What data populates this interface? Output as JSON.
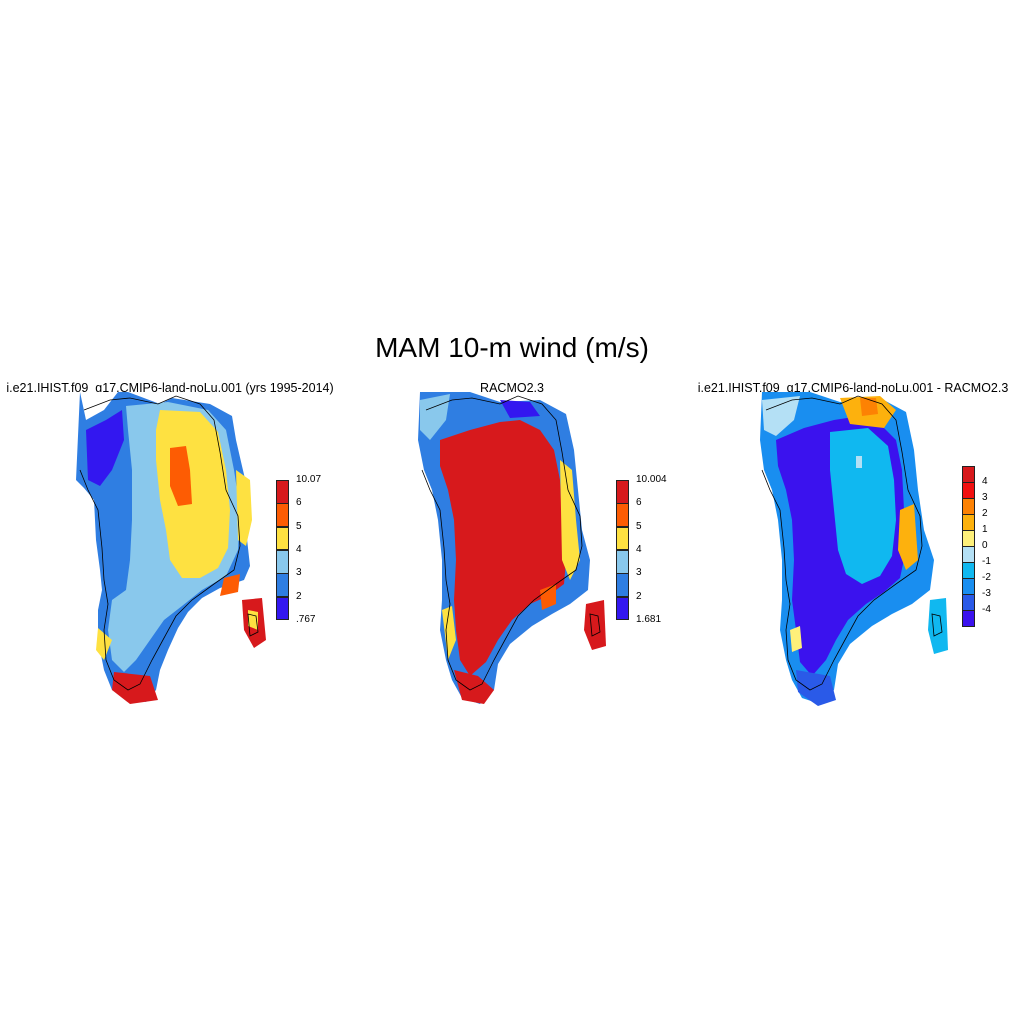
{
  "title": "MAM 10-m wind (m/s)",
  "panels": [
    {
      "id": "model",
      "title": "i.e21.IHIST.f09_g17.CMIP6-land-noLu.001 (yrs 1995-2014)",
      "colorbar": {
        "labels": [
          "10.07",
          "6",
          "5",
          "4",
          "3",
          "2",
          ".767"
        ],
        "colors": [
          "#d7191c",
          "#fd5c03",
          "#fee141",
          "#89c8ec",
          "#2f7ee2",
          "#3317f0"
        ]
      }
    },
    {
      "id": "racmo",
      "title": "RACMO2.3",
      "colorbar": {
        "labels": [
          "10.004",
          "6",
          "5",
          "4",
          "3",
          "2",
          "1.681"
        ],
        "colors": [
          "#d7191c",
          "#fd5c03",
          "#fee141",
          "#89c8ec",
          "#2f7ee2",
          "#3317f0"
        ]
      }
    },
    {
      "id": "diff",
      "title": "i.e21.IHIST.f09_g17.CMIP6-land-noLu.001 - RACMO2.3",
      "colorbar": {
        "labels": [
          "4",
          "3",
          "2",
          "1",
          "0",
          "-1",
          "-2",
          "-3",
          "-4"
        ],
        "colors": [
          "#d7191c",
          "#f21010",
          "#fd8203",
          "#fdb10d",
          "#fef07a",
          "#b4e0f5",
          "#10b8f0",
          "#198ef0",
          "#2a5ae8",
          "#3b12ee"
        ]
      }
    }
  ]
}
